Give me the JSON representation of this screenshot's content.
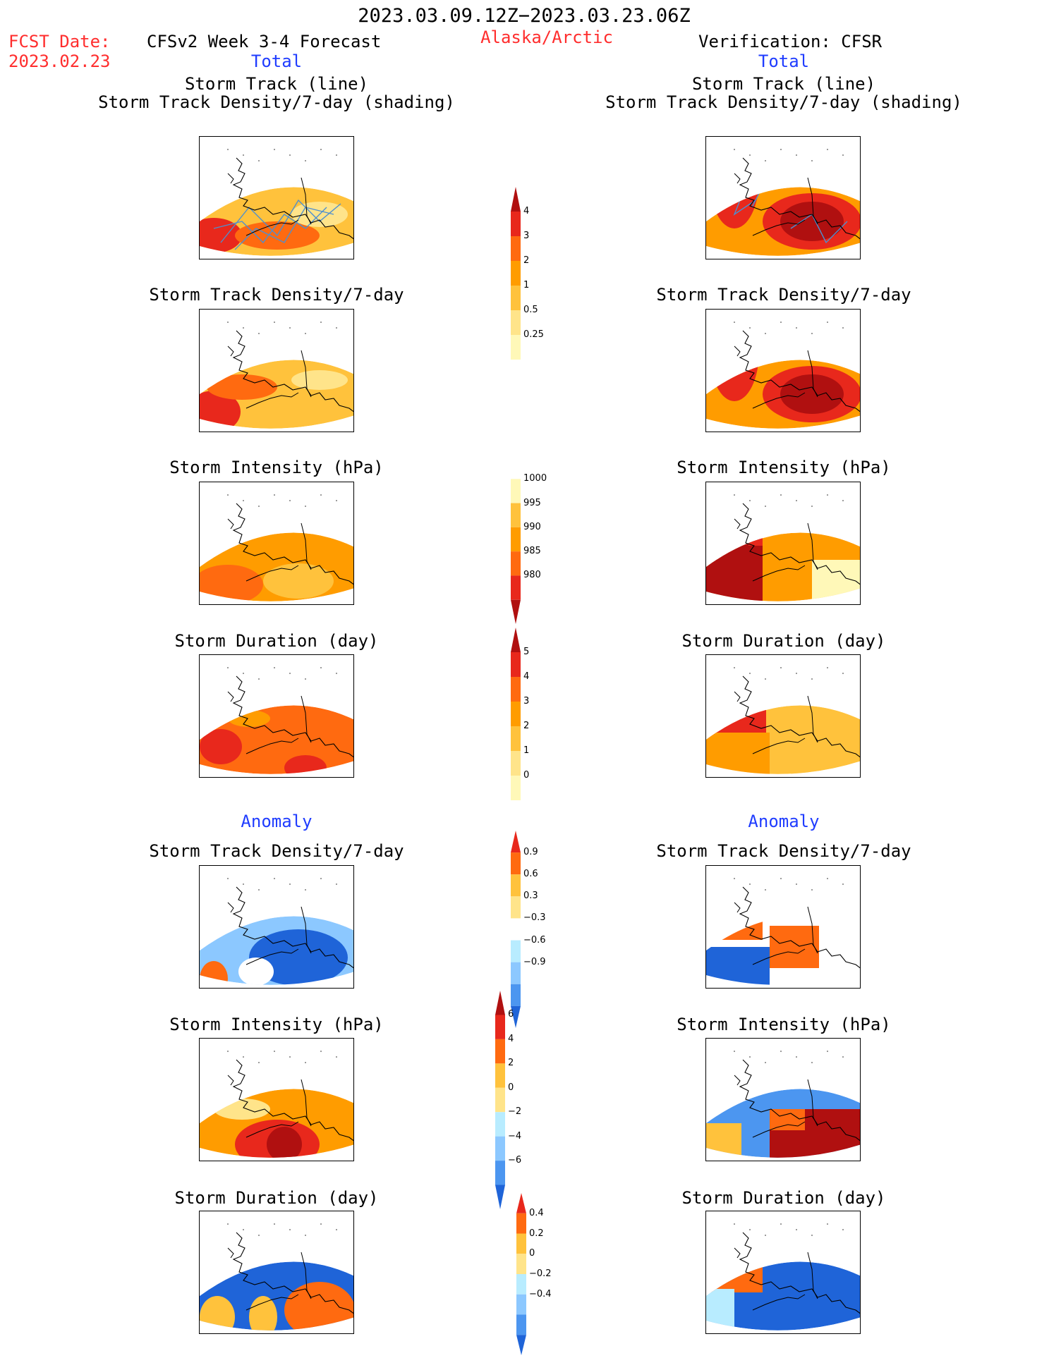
{
  "header": {
    "period": "2023.03.09.12Z−2023.03.23.06Z",
    "fcst_label": "FCST Date:",
    "fcst_date": "2023.02.23",
    "model": "CFSv2 Week 3-4 Forecast",
    "region": "Alaska/Arctic",
    "verification": "Verification: CFSR",
    "left_total": "Total",
    "right_total": "Total",
    "left_anomaly": "Anomaly",
    "right_anomaly": "Anomaly"
  },
  "panel_titles": {
    "track_line": "Storm Track (line)",
    "track_density_shading": "Storm Track Density/7-day (shading)",
    "track_density": "Storm Track Density/7-day",
    "intensity": "Storm Intensity (hPa)",
    "duration": "Storm Duration (day)"
  },
  "colorbars": {
    "density": [
      "4",
      "3",
      "2",
      "1",
      "0.5",
      "0.25"
    ],
    "intensity": [
      "1000",
      "995",
      "990",
      "985",
      "980"
    ],
    "duration": [
      "5",
      "4",
      "3",
      "2",
      "1",
      "0"
    ],
    "density_anom": [
      "0.9",
      "0.6",
      "0.3",
      "−0.3",
      "−0.6",
      "−0.9"
    ],
    "intensity_anom": [
      "6",
      "4",
      "2",
      "0",
      "−2",
      "−4",
      "−6"
    ],
    "duration_anom": [
      "0.4",
      "0.2",
      "0",
      "−0.2",
      "−0.4"
    ]
  },
  "colors": {
    "warm": [
      "#fff8b8",
      "#ffe48a",
      "#ffc23c",
      "#ff9c00",
      "#ff6a10",
      "#e8281c",
      "#b01010"
    ],
    "cool": [
      "#ffffff",
      "#b8ecff",
      "#8cc8ff",
      "#4c96f0",
      "#1f64d8"
    ],
    "track_line": "#4d8fd0"
  }
}
